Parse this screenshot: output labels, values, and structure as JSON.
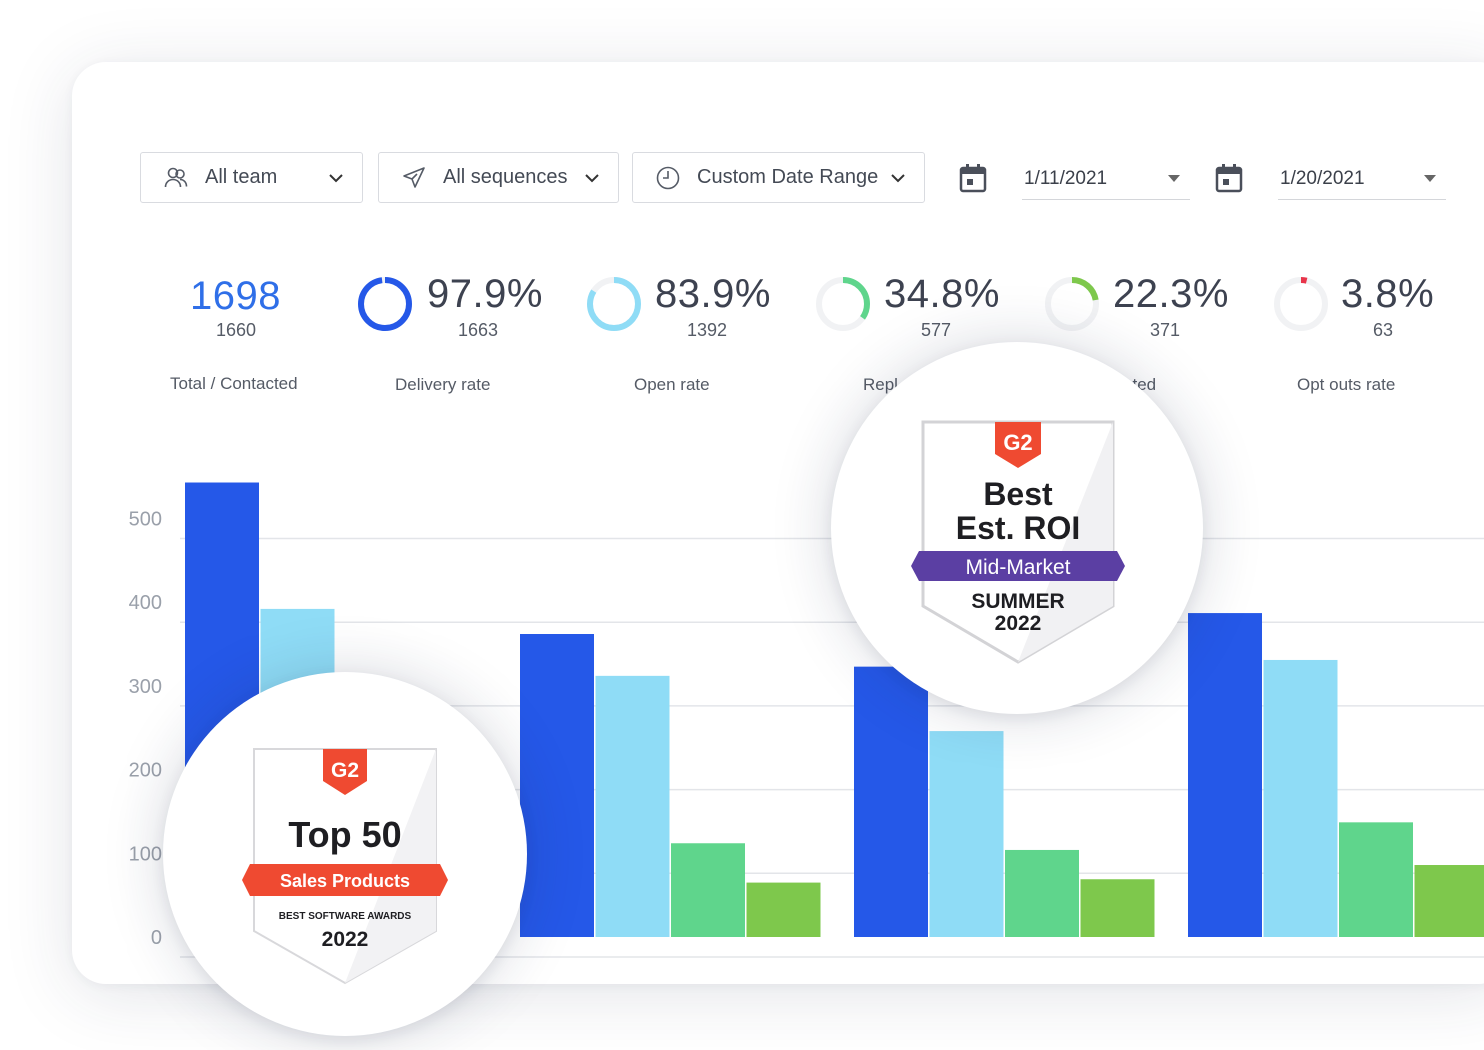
{
  "toolbar": {
    "team": {
      "label": "All team",
      "icon": "team-icon"
    },
    "sequences": {
      "label": "All sequences",
      "icon": "send-icon"
    },
    "date_range": {
      "label": "Custom Date Range",
      "icon": "clock-icon"
    },
    "start_date": "1/11/2021",
    "end_date": "1/20/2021"
  },
  "stats": [
    {
      "value": "1698",
      "sub": "1660",
      "label": "Total / Contacted"
    },
    {
      "value": "97.9%",
      "sub": "1663",
      "label": "Delivery rate",
      "ring_color": "#2558e8",
      "ring_fraction": 0.979
    },
    {
      "value": "83.9%",
      "sub": "1392",
      "label": "Open rate",
      "ring_color": "#8fdcf6",
      "ring_fraction": 0.839
    },
    {
      "value": "34.8%",
      "sub": "577",
      "label": "Repl",
      "ring_color": "#5fd58c",
      "ring_fraction": 0.348
    },
    {
      "value": "22.3%",
      "sub": "371",
      "label": "sted",
      "ring_color": "#7ec84c",
      "ring_fraction": 0.223
    },
    {
      "value": "3.8%",
      "sub": "63",
      "label": "Opt outs rate",
      "ring_color": "#e8344a",
      "ring_fraction": 0.038
    }
  ],
  "chart_data": {
    "type": "bar",
    "ylim": [
      0,
      500
    ],
    "yticks": [
      "500",
      "400",
      "300",
      "200",
      "100",
      "0"
    ],
    "categories": [
      "",
      "",
      "",
      ""
    ],
    "series": [
      {
        "color": "#2558e8",
        "values": [
          543,
          362,
          323,
          387
        ]
      },
      {
        "color": "#8fdcf6",
        "values": [
          392,
          312,
          246,
          331
        ]
      },
      {
        "color": "#5fd58c",
        "values": [
          null,
          112,
          104,
          137
        ]
      },
      {
        "color": "#7ec84c",
        "values": [
          null,
          65,
          69,
          86
        ]
      }
    ]
  },
  "badges": {
    "roi": {
      "brand": "G2",
      "line1": "Best",
      "line2": "Est. ROI",
      "ribbon": "Mid-Market",
      "season": "SUMMER",
      "year": "2022",
      "ribbon_color": "#5b3fa3"
    },
    "top50": {
      "brand": "G2",
      "title": "Top 50",
      "ribbon": "Sales Products",
      "subtitle": "BEST SOFTWARE AWARDS",
      "year": "2022",
      "ribbon_color": "#ef4a31"
    }
  }
}
